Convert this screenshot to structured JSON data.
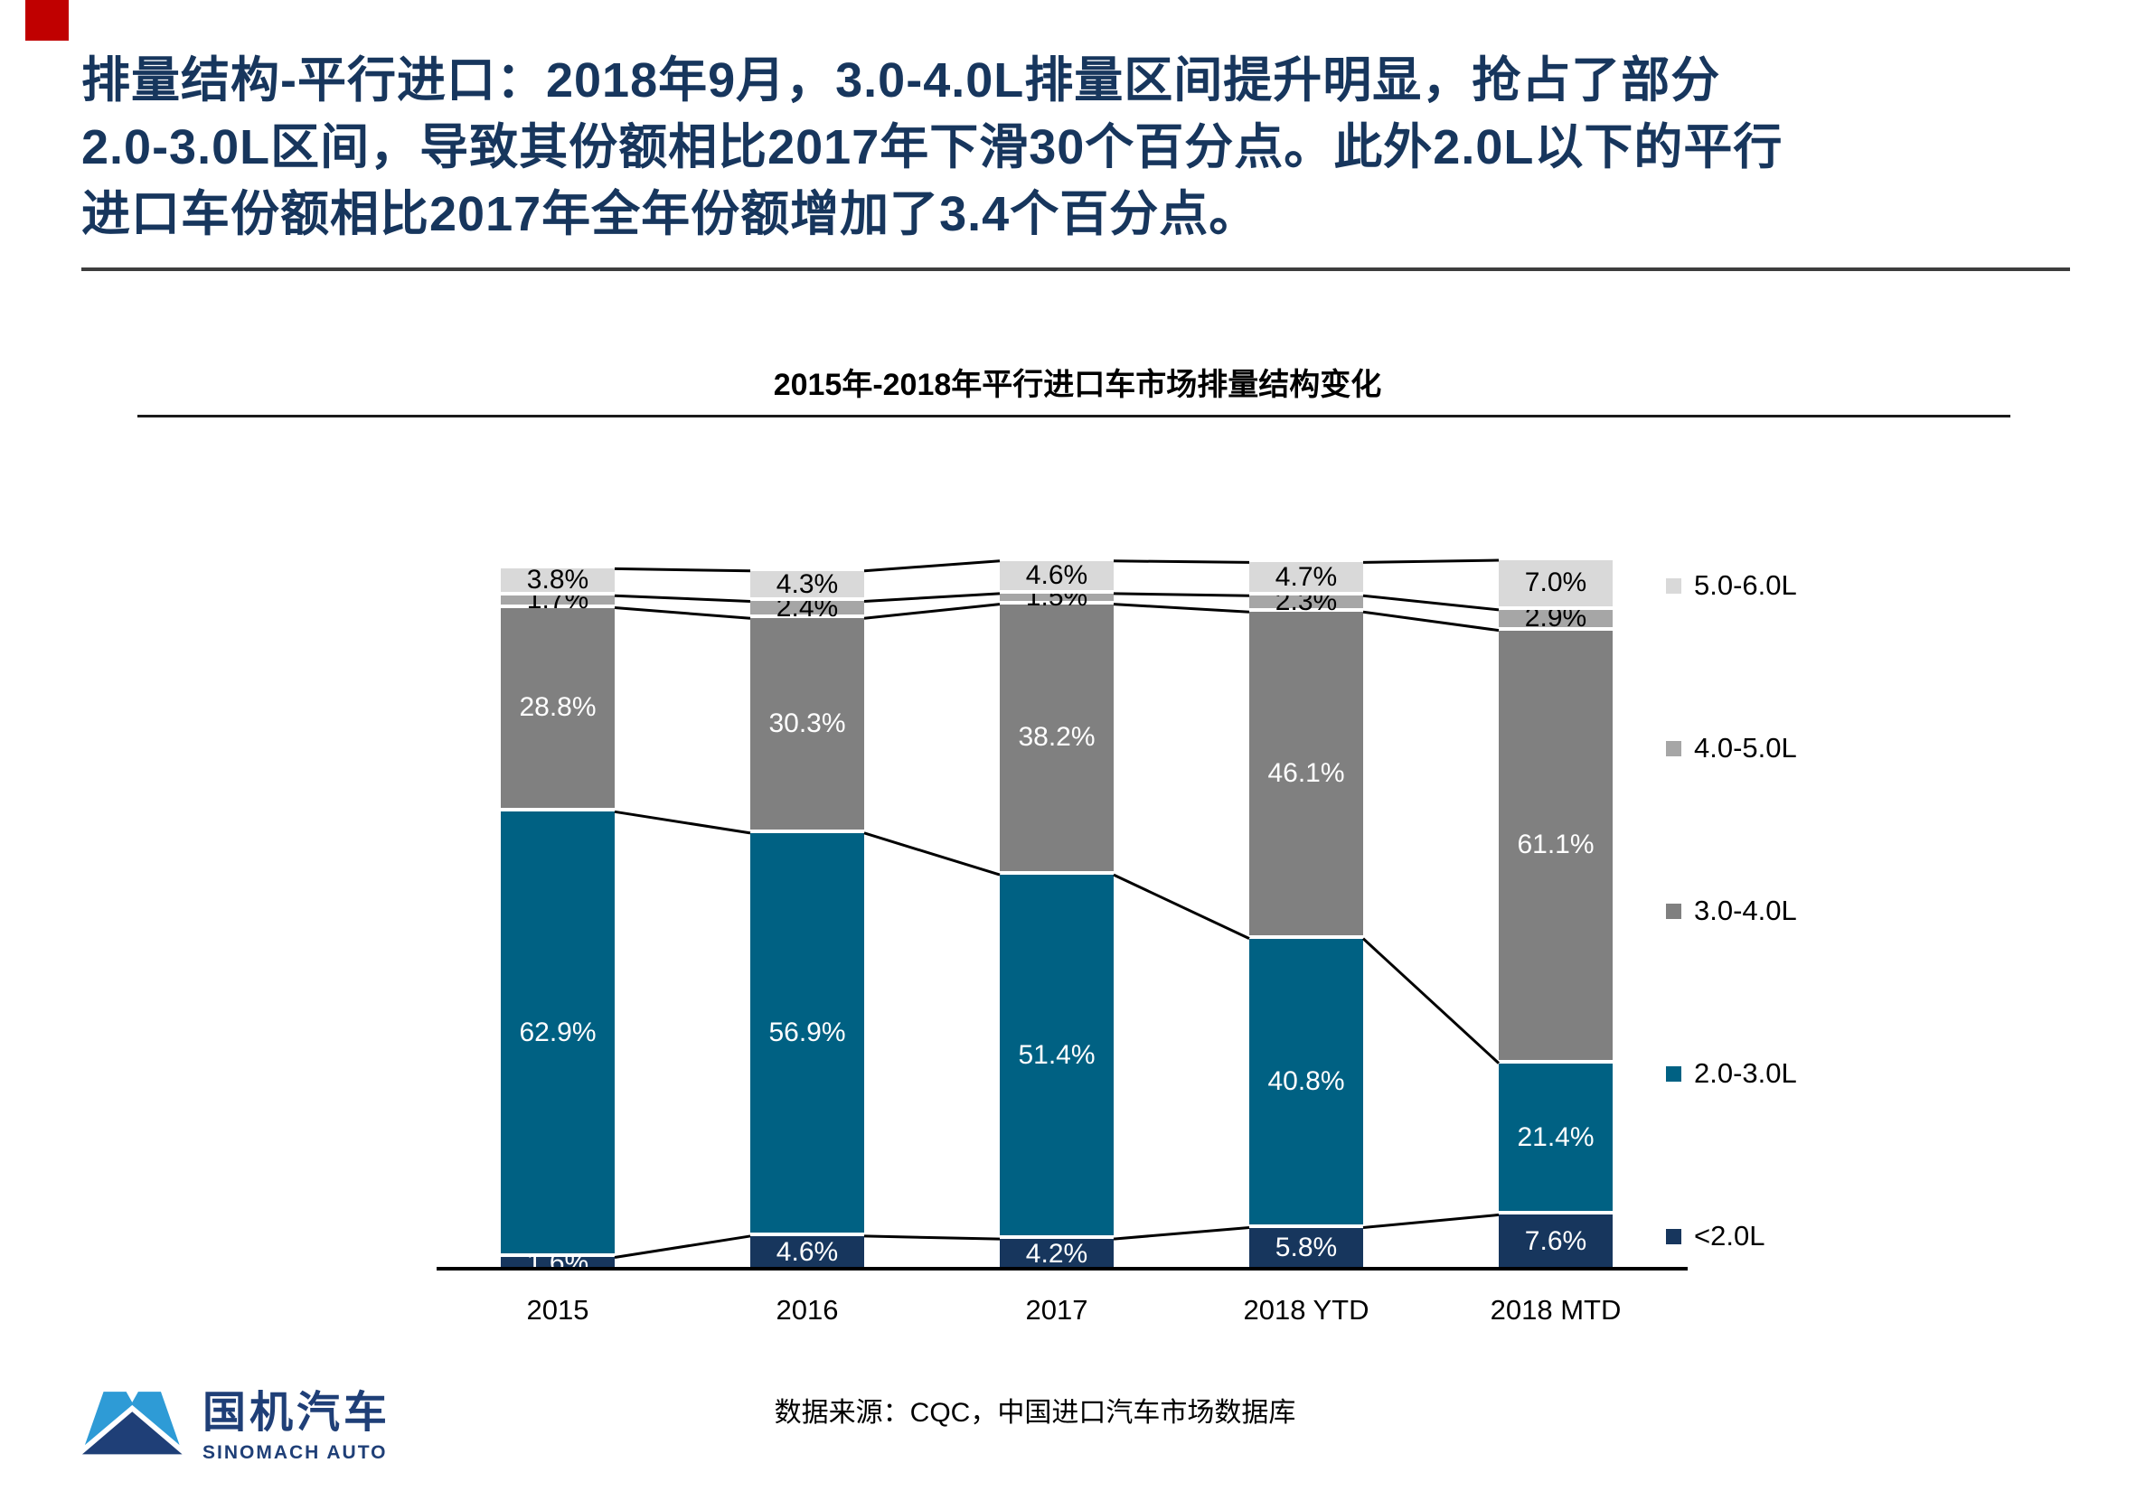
{
  "header": {
    "title_line1": "排量结构-平行进口：2018年9月，3.0-4.0L排量区间提升明显，抢占了部分",
    "title_line2": "2.0-3.0L区间，导致其份额相比2017年下滑30个百分点。此外2.0L以下的平行",
    "title_line3": "进口车份额相比2017年全年份额增加了3.4个百分点。"
  },
  "chart_data": {
    "type": "bar",
    "stacked": true,
    "title": "2015年-2018年平行进口车市场排量结构变化",
    "categories": [
      "2015",
      "2016",
      "2017",
      "2018 YTD",
      "2018 MTD"
    ],
    "series": [
      {
        "name": "<2.0L",
        "color": "#17365D",
        "label_color": "#ffffff",
        "values": [
          1.6,
          4.6,
          4.2,
          5.8,
          7.6
        ]
      },
      {
        "name": "2.0-3.0L",
        "color": "#006183",
        "label_color": "#ffffff",
        "values": [
          62.9,
          56.9,
          51.4,
          40.8,
          21.4
        ]
      },
      {
        "name": "3.0-4.0L",
        "color": "#808080",
        "label_color": "#ffffff",
        "values": [
          28.8,
          30.3,
          38.2,
          46.1,
          61.1
        ]
      },
      {
        "name": "4.0-5.0L",
        "color": "#A6A6A6",
        "label_color": "#000000",
        "values": [
          1.7,
          2.4,
          1.5,
          2.3,
          2.9
        ]
      },
      {
        "name": "5.0-6.0L",
        "color": "#D9D9D9",
        "label_color": "#000000",
        "values": [
          3.8,
          4.3,
          4.6,
          4.7,
          7.0
        ]
      }
    ],
    "value_suffix": "%",
    "ylim": [
      0,
      100
    ],
    "grid": false,
    "legend_position": "right",
    "legend_order": [
      "5.0-6.0L",
      "4.0-5.0L",
      "3.0-4.0L",
      "2.0-3.0L",
      "<2.0L"
    ],
    "connector_lines": true
  },
  "footer": {
    "source": "数据来源：CQC，中国进口汽车市场数据库",
    "logo_cn": "国机汽车",
    "logo_en": "SINOMACH AUTO"
  },
  "colors": {
    "title_navy": "#17365D",
    "red_mark": "#C00000",
    "logo_blue": "#2E9BD6",
    "logo_navy": "#1F3F77",
    "axis_black": "#000000"
  }
}
